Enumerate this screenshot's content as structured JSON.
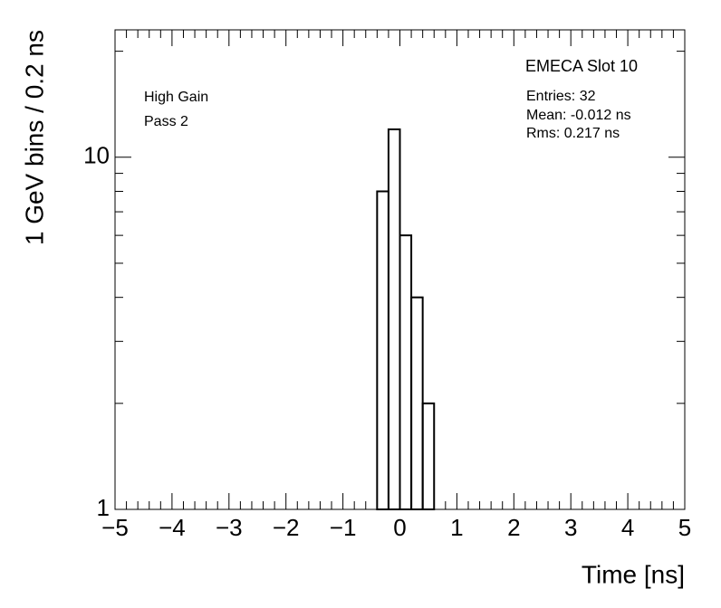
{
  "chart_data": {
    "type": "histogram",
    "title": "EMECA Slot 10",
    "stats": [
      "Entries: 32",
      "Mean: -0.012 ns",
      "Rms: 0.217 ns"
    ],
    "annotations": [
      "High Gain",
      "Pass 2"
    ],
    "x_label": "Time [ns]",
    "y_label": "1 GeV bins / 0.2 ns",
    "bins": [
      -0.4,
      -0.2,
      0,
      0.2,
      0.4,
      0.6
    ],
    "values": [
      8,
      12,
      6,
      4,
      2
    ],
    "color": "#000000",
    "log_y": true,
    "xlim": [
      -5,
      5
    ],
    "ylim": [
      1,
      23
    ],
    "xticks": [
      {
        "value": -5,
        "label": "−5"
      },
      {
        "value": -4,
        "label": "−4"
      },
      {
        "value": -3,
        "label": "−3"
      },
      {
        "value": -2,
        "label": "−2"
      },
      {
        "value": -1,
        "label": "−1"
      },
      0,
      1,
      2,
      3,
      4,
      5
    ],
    "xminorticks": [
      -4.8,
      -4.6,
      -4.4,
      -4.2,
      -3.8,
      -3.6,
      -3.4,
      -3.2,
      -2.8,
      -2.6,
      -2.4,
      -2.2,
      -1.8,
      -1.6,
      -1.4,
      -1.2,
      -0.8,
      -0.6,
      -0.4,
      -0.2,
      0.2,
      0.4,
      0.6,
      0.8,
      1.2,
      1.4,
      1.6,
      1.8,
      2.2,
      2.4,
      2.6,
      2.8,
      3.2,
      3.4,
      3.6,
      3.8,
      4.2,
      4.4,
      4.6,
      4.8
    ],
    "yticks": [
      1,
      10
    ],
    "yminorticks": [
      2,
      3,
      4,
      5,
      6,
      7,
      8,
      9,
      20
    ]
  }
}
